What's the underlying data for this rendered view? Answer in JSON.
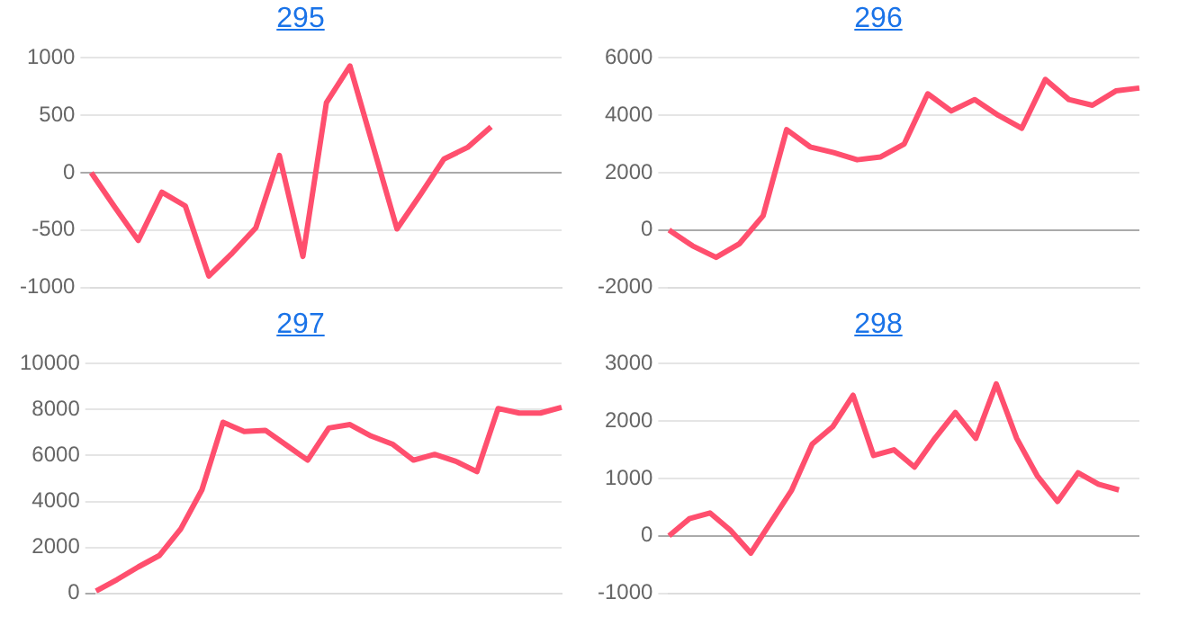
{
  "chart_data": [
    {
      "type": "line",
      "title": "295",
      "categories": [
        null,
        null,
        null,
        null,
        null,
        null,
        null,
        null,
        null,
        null,
        null,
        null,
        null,
        null,
        null,
        null,
        null,
        null,
        null,
        null,
        null
      ],
      "series": [
        {
          "color": "#ff4f6e",
          "values": [
            0,
            -300,
            -590,
            -170,
            -290,
            -900,
            -700,
            -480,
            150,
            -730,
            610,
            930,
            220,
            -490,
            -190,
            120,
            220,
            400,
            null,
            null,
            null
          ]
        }
      ],
      "ylim": [
        -1000,
        1000
      ],
      "yticks": [
        -1000,
        -500,
        0,
        500,
        1000
      ],
      "grid": "y",
      "marker": "none"
    },
    {
      "type": "line",
      "title": "296",
      "categories": [
        null,
        null,
        null,
        null,
        null,
        null,
        null,
        null,
        null,
        null,
        null,
        null,
        null,
        null,
        null,
        null,
        null,
        null,
        null,
        null,
        null
      ],
      "series": [
        {
          "color": "#ff4f6e",
          "values": [
            0,
            -550,
            -950,
            -470,
            500,
            3500,
            2900,
            2700,
            2450,
            2550,
            3000,
            4750,
            4150,
            4550,
            4000,
            3550,
            5250,
            4550,
            4350,
            4850,
            4950
          ]
        }
      ],
      "ylim": [
        -2000,
        6000
      ],
      "yticks": [
        -2000,
        0,
        2000,
        4000,
        6000
      ],
      "grid": "y",
      "marker": "none"
    },
    {
      "type": "line",
      "title": "297",
      "categories": [
        null,
        null,
        null,
        null,
        null,
        null,
        null,
        null,
        null,
        null,
        null,
        null,
        null,
        null,
        null,
        null,
        null,
        null,
        null,
        null,
        null,
        null,
        null
      ],
      "series": [
        {
          "color": "#ff4f6e",
          "values": [
            100,
            600,
            1150,
            1650,
            2800,
            4500,
            7450,
            7050,
            7100,
            6450,
            5800,
            7200,
            7350,
            6850,
            6500,
            5800,
            6050,
            5750,
            5300,
            8050,
            7850,
            7850,
            8100
          ]
        }
      ],
      "ylim": [
        0,
        10000
      ],
      "yticks": [
        0,
        2000,
        4000,
        6000,
        8000,
        10000
      ],
      "grid": "y",
      "marker": "none"
    },
    {
      "type": "line",
      "title": "298",
      "categories": [
        null,
        null,
        null,
        null,
        null,
        null,
        null,
        null,
        null,
        null,
        null,
        null,
        null,
        null,
        null,
        null,
        null,
        null,
        null,
        null,
        null,
        null,
        null,
        null
      ],
      "series": [
        {
          "color": "#ff4f6e",
          "values": [
            0,
            300,
            400,
            100,
            -300,
            250,
            800,
            1600,
            1900,
            2450,
            1400,
            1500,
            1200,
            1700,
            2150,
            1700,
            2650,
            1700,
            1050,
            600,
            1100,
            900,
            800,
            null
          ]
        }
      ],
      "ylim": [
        -1000,
        3000
      ],
      "yticks": [
        -1000,
        0,
        1000,
        2000,
        3000
      ],
      "grid": "y",
      "marker": "none"
    }
  ]
}
